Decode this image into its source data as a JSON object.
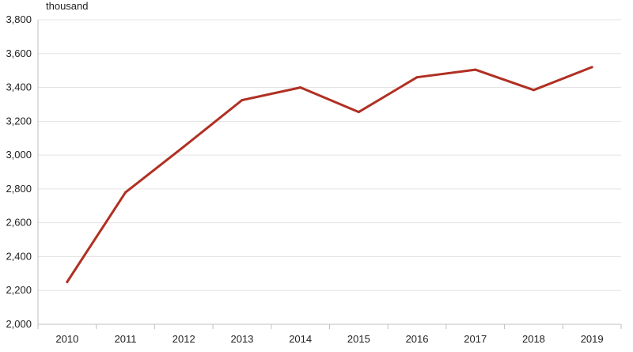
{
  "chart_data": {
    "type": "line",
    "unit_label": "thousand",
    "categories": [
      "2010",
      "2011",
      "2012",
      "2013",
      "2014",
      "2015",
      "2016",
      "2017",
      "2018",
      "2019"
    ],
    "series": [
      {
        "values": [
          2250,
          2780,
          3050,
          3325,
          3400,
          3255,
          3460,
          3505,
          3385,
          3520
        ]
      }
    ],
    "ylim": [
      2000,
      3800
    ],
    "yticks": [
      2000,
      2200,
      2400,
      2600,
      2800,
      3000,
      3200,
      3400,
      3600,
      3800
    ],
    "ytick_labels": [
      "2,000",
      "2,200",
      "2,400",
      "2,600",
      "2,800",
      "3,000",
      "3,200",
      "3,400",
      "3,600",
      "3,800"
    ],
    "grid": "horizontal",
    "colors": {
      "line": "#b03023",
      "grid": "#e3e3e3",
      "axis": "#bfbfbf"
    }
  }
}
